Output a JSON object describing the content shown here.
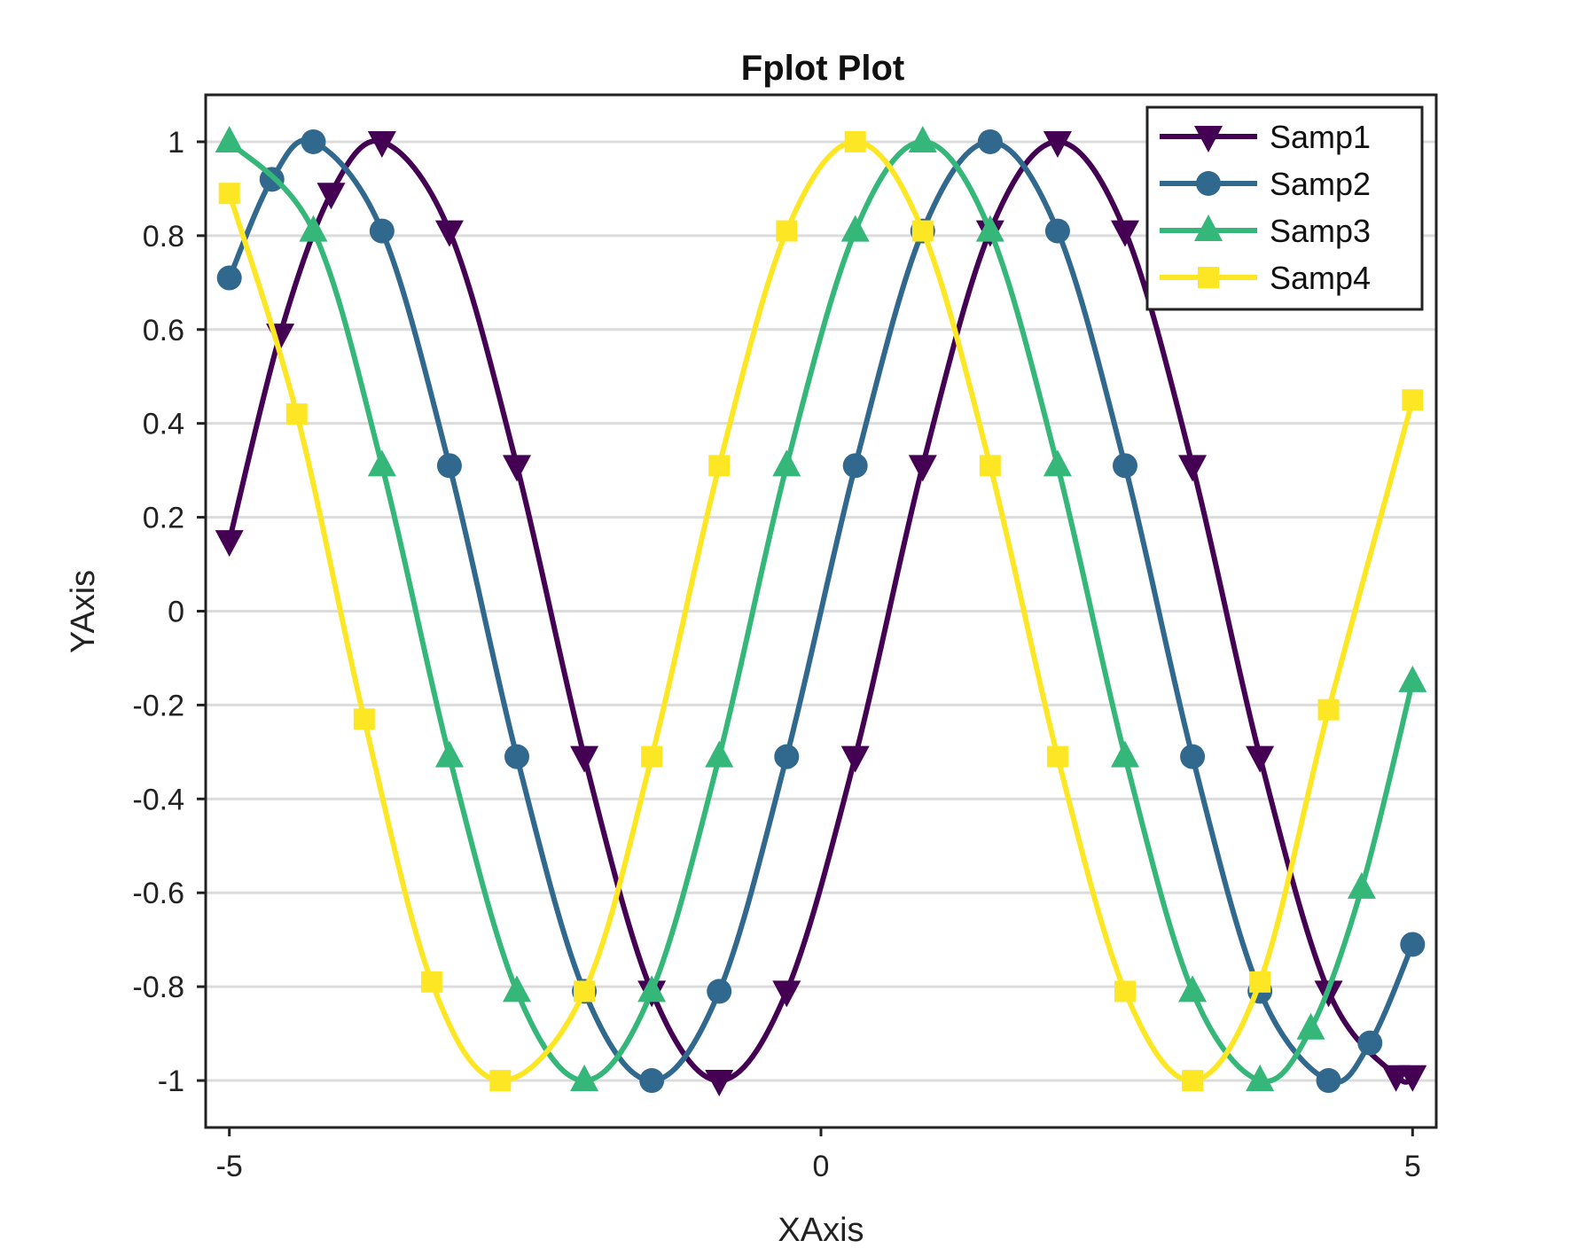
{
  "chart_data": {
    "type": "line",
    "title": "Fplot Plot",
    "xlabel": "XAxis",
    "ylabel": "YAxis",
    "xlim": [
      -5.2,
      5.2
    ],
    "ylim": [
      -1.1,
      1.1
    ],
    "xticks": [
      -5,
      0,
      5
    ],
    "xtick_labels": [
      "-5",
      "0",
      "5"
    ],
    "yticks": [
      -1,
      -0.8,
      -0.6,
      -0.4,
      -0.2,
      0,
      0.2,
      0.4,
      0.6,
      0.8,
      1
    ],
    "ytick_labels": [
      "-1",
      "-0.8",
      "-0.6",
      "-0.4",
      "-0.2",
      "0",
      "0.2",
      "0.4",
      "0.6",
      "0.8",
      "1"
    ],
    "grid": "horizontal",
    "legend_position": "top-right",
    "series": [
      {
        "name": "Samp1",
        "color": "#440154",
        "marker": "triangle-down",
        "markers": [
          {
            "x": -5.0,
            "y": 0.15
          },
          {
            "x": -4.57,
            "y": 0.59
          },
          {
            "x": -4.14,
            "y": 0.89
          },
          {
            "x": -3.71,
            "y": 1.0
          },
          {
            "x": -3.14,
            "y": 0.81
          },
          {
            "x": -2.57,
            "y": 0.31
          },
          {
            "x": -2.0,
            "y": -0.31
          },
          {
            "x": -1.43,
            "y": -0.81
          },
          {
            "x": -0.86,
            "y": -1.0
          },
          {
            "x": -0.29,
            "y": -0.81
          },
          {
            "x": 0.29,
            "y": -0.31
          },
          {
            "x": 0.86,
            "y": 0.31
          },
          {
            "x": 1.43,
            "y": 0.81
          },
          {
            "x": 2.0,
            "y": 1.0
          },
          {
            "x": 2.57,
            "y": 0.81
          },
          {
            "x": 3.14,
            "y": 0.31
          },
          {
            "x": 3.71,
            "y": -0.31
          },
          {
            "x": 4.29,
            "y": -0.81
          },
          {
            "x": 4.86,
            "y": -0.99
          },
          {
            "x": 5.0,
            "y": -0.99
          }
        ]
      },
      {
        "name": "Samp2",
        "color": "#31688e",
        "marker": "circle",
        "markers": [
          {
            "x": -5.0,
            "y": 0.71
          },
          {
            "x": -4.64,
            "y": 0.92
          },
          {
            "x": -4.29,
            "y": 1.0
          },
          {
            "x": -3.71,
            "y": 0.81
          },
          {
            "x": -3.14,
            "y": 0.31
          },
          {
            "x": -2.57,
            "y": -0.31
          },
          {
            "x": -2.0,
            "y": -0.81
          },
          {
            "x": -1.43,
            "y": -1.0
          },
          {
            "x": -0.86,
            "y": -0.81
          },
          {
            "x": -0.29,
            "y": -0.31
          },
          {
            "x": 0.29,
            "y": 0.31
          },
          {
            "x": 0.86,
            "y": 0.81
          },
          {
            "x": 1.43,
            "y": 1.0
          },
          {
            "x": 2.0,
            "y": 0.81
          },
          {
            "x": 2.57,
            "y": 0.31
          },
          {
            "x": 3.14,
            "y": -0.31
          },
          {
            "x": 3.71,
            "y": -0.81
          },
          {
            "x": 4.29,
            "y": -1.0
          },
          {
            "x": 4.64,
            "y": -0.92
          },
          {
            "x": 5.0,
            "y": -0.71
          }
        ]
      },
      {
        "name": "Samp3",
        "color": "#35b779",
        "marker": "triangle-up",
        "markers": [
          {
            "x": -5.0,
            "y": 1.0
          },
          {
            "x": -4.29,
            "y": 0.81
          },
          {
            "x": -3.71,
            "y": 0.31
          },
          {
            "x": -3.14,
            "y": -0.31
          },
          {
            "x": -2.57,
            "y": -0.81
          },
          {
            "x": -2.0,
            "y": -1.0
          },
          {
            "x": -1.43,
            "y": -0.81
          },
          {
            "x": -0.86,
            "y": -0.31
          },
          {
            "x": -0.29,
            "y": 0.31
          },
          {
            "x": 0.29,
            "y": 0.81
          },
          {
            "x": 0.86,
            "y": 1.0
          },
          {
            "x": 1.43,
            "y": 0.81
          },
          {
            "x": 2.0,
            "y": 0.31
          },
          {
            "x": 2.57,
            "y": -0.31
          },
          {
            "x": 3.14,
            "y": -0.81
          },
          {
            "x": 3.71,
            "y": -1.0
          },
          {
            "x": 4.14,
            "y": -0.89
          },
          {
            "x": 4.57,
            "y": -0.59
          },
          {
            "x": 5.0,
            "y": -0.15
          }
        ]
      },
      {
        "name": "Samp4",
        "color": "#fde725",
        "marker": "square",
        "markers": [
          {
            "x": -5.0,
            "y": 0.89
          },
          {
            "x": -4.43,
            "y": 0.42
          },
          {
            "x": -3.86,
            "y": -0.23
          },
          {
            "x": -3.29,
            "y": -0.79
          },
          {
            "x": -2.71,
            "y": -1.0
          },
          {
            "x": -2.0,
            "y": -0.81
          },
          {
            "x": -1.43,
            "y": -0.31
          },
          {
            "x": -0.86,
            "y": 0.31
          },
          {
            "x": -0.29,
            "y": 0.81
          },
          {
            "x": 0.29,
            "y": 1.0
          },
          {
            "x": 0.86,
            "y": 0.81
          },
          {
            "x": 1.43,
            "y": 0.31
          },
          {
            "x": 2.0,
            "y": -0.31
          },
          {
            "x": 2.57,
            "y": -0.81
          },
          {
            "x": 3.14,
            "y": -1.0
          },
          {
            "x": 3.71,
            "y": -0.79
          },
          {
            "x": 4.29,
            "y": -0.21
          },
          {
            "x": 5.0,
            "y": 0.45
          }
        ]
      }
    ]
  }
}
